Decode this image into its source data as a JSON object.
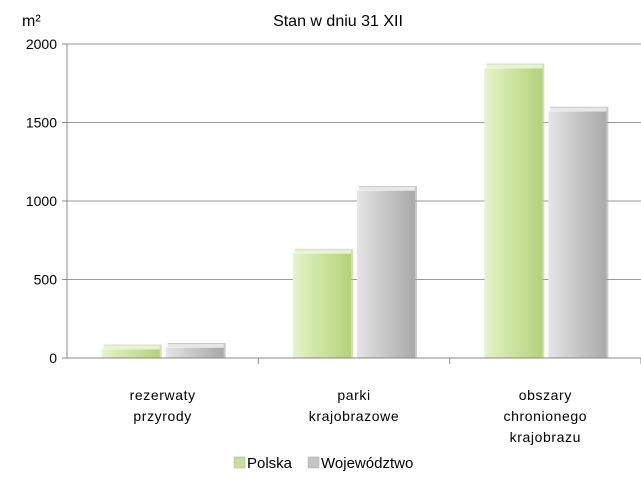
{
  "chart_data": {
    "type": "bar",
    "title": "Stan w dniu 31 XII",
    "ylabel": "m²",
    "xlabel": "",
    "ylim": [
      0,
      2000
    ],
    "yticks": [
      0,
      500,
      1000,
      1500,
      2000
    ],
    "grid": true,
    "legend_position": "bottom",
    "categories": [
      [
        "rezerwaty",
        "przyrody"
      ],
      [
        "parki",
        "krajobrazowe"
      ],
      [
        "obszary",
        "chronionego",
        "krajobrazu"
      ]
    ],
    "series": [
      {
        "name": "Polska",
        "color": "#c8e09a",
        "values": [
          60,
          670,
          1850
        ]
      },
      {
        "name": "Województwo",
        "color": "#c4c4c4",
        "values": [
          70,
          1070,
          1575
        ]
      }
    ]
  }
}
